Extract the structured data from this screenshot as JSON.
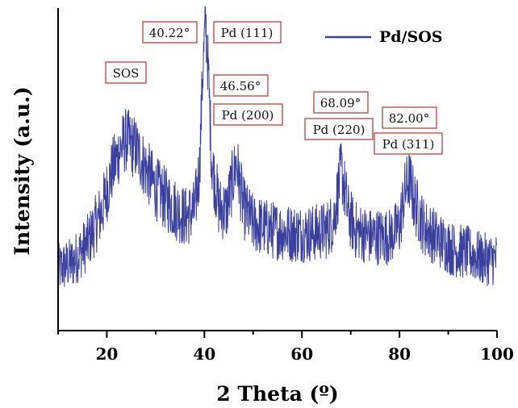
{
  "chart_data": {
    "type": "line",
    "title": "",
    "xlabel": "2 Theta (º)",
    "ylabel": "Intensity (a.u.)",
    "xlim": [
      10,
      100
    ],
    "ylim": [
      0,
      1
    ],
    "x_ticks": [
      20,
      40,
      60,
      80,
      100
    ],
    "y_tick_labels": false,
    "grid": false,
    "legend": {
      "position": "top-right"
    },
    "series": [
      {
        "name": "Pd/SOS",
        "color": "#3b3f9e",
        "profile": {
          "x": [
            10,
            13,
            16,
            19,
            21,
            23,
            24,
            26,
            28,
            30,
            33,
            36,
            38,
            39,
            39.6,
            40.22,
            40.8,
            41.5,
            43,
            44.5,
            46.56,
            48,
            50,
            54,
            58,
            62,
            65,
            66.5,
            68.09,
            69.5,
            71,
            74,
            78,
            80,
            81,
            82,
            83,
            85,
            88,
            91,
            94,
            97,
            100
          ],
          "y": [
            0.19,
            0.21,
            0.27,
            0.37,
            0.49,
            0.57,
            0.59,
            0.56,
            0.5,
            0.44,
            0.39,
            0.35,
            0.37,
            0.5,
            0.78,
            0.96,
            0.8,
            0.52,
            0.38,
            0.37,
            0.52,
            0.38,
            0.33,
            0.31,
            0.3,
            0.3,
            0.31,
            0.34,
            0.5,
            0.36,
            0.31,
            0.29,
            0.29,
            0.32,
            0.42,
            0.47,
            0.4,
            0.32,
            0.28,
            0.25,
            0.24,
            0.22,
            0.22
          ]
        },
        "noise_amplitude": 0.1
      }
    ],
    "annotations": [
      {
        "name": "sos",
        "labels": [
          "SOS"
        ]
      },
      {
        "name": "pd111",
        "labels": [
          "40.22°",
          "Pd (111)"
        ]
      },
      {
        "name": "pd200",
        "labels": [
          "46.56°",
          "Pd (200)"
        ]
      },
      {
        "name": "pd220",
        "labels": [
          "68.09°",
          "Pd (220)"
        ]
      },
      {
        "name": "pd311",
        "labels": [
          "82.00°",
          "Pd (311)"
        ]
      }
    ]
  }
}
